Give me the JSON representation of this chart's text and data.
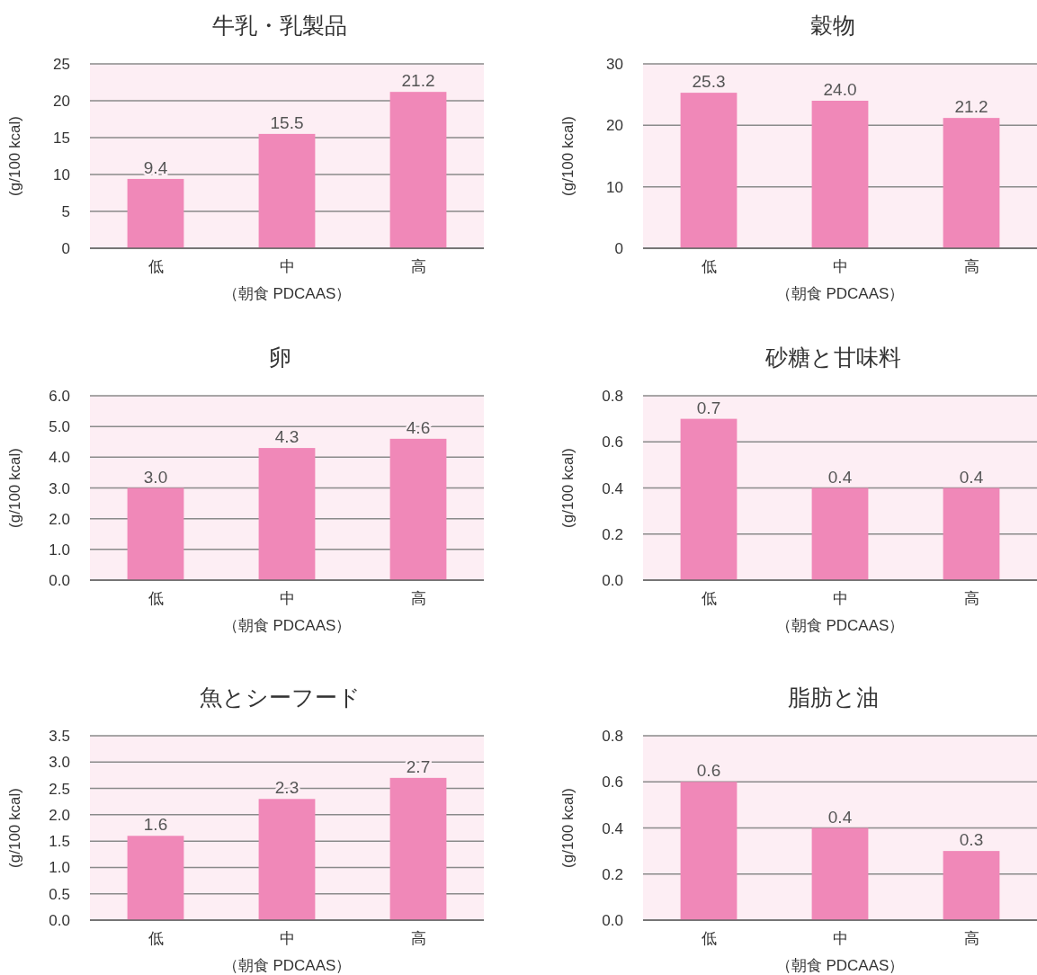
{
  "chart_data": [
    {
      "type": "bar",
      "title": "牛乳・乳製品",
      "categories": [
        "低",
        "中",
        "高"
      ],
      "values": [
        9.4,
        15.5,
        21.2
      ],
      "value_labels": [
        "9.4",
        "15.5",
        "21.2"
      ],
      "color": "#f088b8",
      "xlabel": "（朝食 PDCAAS）",
      "ylabel": "(g/100 kcal)",
      "ylim": [
        0,
        25
      ],
      "yticks": [
        0,
        5,
        10,
        15,
        20,
        25
      ],
      "grid": "y"
    },
    {
      "type": "bar",
      "title": "穀物",
      "categories": [
        "低",
        "中",
        "高"
      ],
      "values": [
        25.3,
        24.0,
        21.2
      ],
      "value_labels": [
        "25.3",
        "24.0",
        "21.2"
      ],
      "color": "#f088b8",
      "xlabel": "（朝食 PDCAAS）",
      "ylabel": "(g/100 kcal)",
      "ylim": [
        0,
        30
      ],
      "yticks": [
        0,
        10,
        20,
        30
      ],
      "grid": "y"
    },
    {
      "type": "bar",
      "title": "卵",
      "categories": [
        "低",
        "中",
        "高"
      ],
      "values": [
        3.0,
        4.3,
        4.6
      ],
      "value_labels": [
        "3.0",
        "4.3",
        "4.6"
      ],
      "color": "#f088b8",
      "xlabel": "（朝食 PDCAAS）",
      "ylabel": "(g/100 kcal)",
      "ylim": [
        0,
        6
      ],
      "yticks": [
        {
          "value": 0,
          "label": "0.0"
        },
        {
          "value": 1,
          "label": "1.0"
        },
        {
          "value": 2,
          "label": "2.0"
        },
        {
          "value": 3,
          "label": "3.0"
        },
        {
          "value": 4,
          "label": "4.0"
        },
        {
          "value": 5,
          "label": "5.0"
        },
        {
          "value": 6,
          "label": "6.0"
        }
      ],
      "grid": "y"
    },
    {
      "type": "bar",
      "title": "砂糖と甘味料",
      "categories": [
        "低",
        "中",
        "高"
      ],
      "values": [
        0.7,
        0.4,
        0.4
      ],
      "value_labels": [
        "0.7",
        "0.4",
        "0.4"
      ],
      "color": "#f088b8",
      "xlabel": "（朝食 PDCAAS）",
      "ylabel": "(g/100 kcal)",
      "ylim": [
        0,
        0.8
      ],
      "yticks": [
        {
          "value": 0,
          "label": "0.0"
        },
        0.2,
        0.4,
        0.6,
        0.8
      ],
      "grid": "y"
    },
    {
      "type": "bar",
      "title": "魚とシーフード",
      "categories": [
        "低",
        "中",
        "高"
      ],
      "values": [
        1.6,
        2.3,
        2.7
      ],
      "value_labels": [
        "1.6",
        "2.3",
        "2.7"
      ],
      "color": "#f088b8",
      "xlabel": "（朝食 PDCAAS）",
      "ylabel": "(g/100 kcal)",
      "ylim": [
        0,
        3.5
      ],
      "yticks": [
        {
          "value": 0,
          "label": "0.0"
        },
        0.5,
        {
          "value": 1,
          "label": "1.0"
        },
        1.5,
        {
          "value": 2,
          "label": "2.0"
        },
        2.5,
        {
          "value": 3,
          "label": "3.0"
        },
        3.5
      ],
      "grid": "y"
    },
    {
      "type": "bar",
      "title": "脂肪と油",
      "categories": [
        "低",
        "中",
        "高"
      ],
      "values": [
        0.6,
        0.4,
        0.3
      ],
      "value_labels": [
        "0.6",
        "0.4",
        "0.3"
      ],
      "color": "#f088b8",
      "xlabel": "（朝食 PDCAAS）",
      "ylabel": "(g/100 kcal)",
      "ylim": [
        0,
        0.8
      ],
      "yticks": [
        {
          "value": 0,
          "label": "0.0"
        },
        0.2,
        0.4,
        0.6,
        0.8
      ],
      "grid": "y"
    }
  ]
}
